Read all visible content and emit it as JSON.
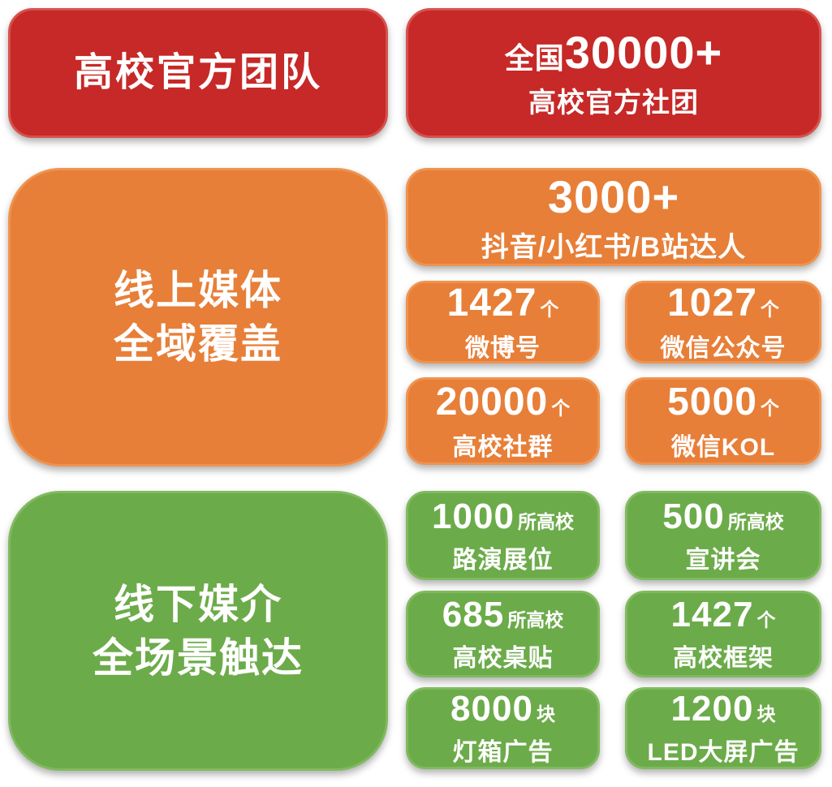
{
  "colors": {
    "red": "#c62927",
    "red_border": "#d7514d",
    "orange": "#e77f38",
    "orange_border": "#ef9350",
    "green": "#6cab4a",
    "green_border": "#80ba5f",
    "text": "#ffffff",
    "background": "#ffffff"
  },
  "official": {
    "title": "高校官方团队",
    "card": {
      "prefix": "全国",
      "number": "30000+",
      "label": "高校官方社团"
    }
  },
  "online": {
    "title_line1": "线上媒体",
    "title_line2": "全域覆盖",
    "wide_card": {
      "number": "3000+",
      "label": "抖音/小红书/B站达人"
    },
    "cards": [
      {
        "number": "1427",
        "unit": "个",
        "label": "微博号"
      },
      {
        "number": "1027",
        "unit": "个",
        "label": "微信公众号"
      },
      {
        "number": "20000",
        "unit": "个",
        "label": "高校社群"
      },
      {
        "number": "5000",
        "unit": "个",
        "label": "微信KOL"
      }
    ]
  },
  "offline": {
    "title_line1": "线下媒介",
    "title_line2": "全场景触达",
    "cards": [
      {
        "number": "1000",
        "unit": "所高校",
        "label": "路演展位"
      },
      {
        "number": "500",
        "unit": "所高校",
        "label": "宣讲会"
      },
      {
        "number": "685",
        "unit": "所高校",
        "label": "高校桌贴"
      },
      {
        "number": "1427",
        "unit": "个",
        "label": "高校框架"
      },
      {
        "number": "8000",
        "unit": "块",
        "label": "灯箱广告"
      },
      {
        "number": "1200",
        "unit": "块",
        "label": "LED大屏广告"
      }
    ]
  }
}
